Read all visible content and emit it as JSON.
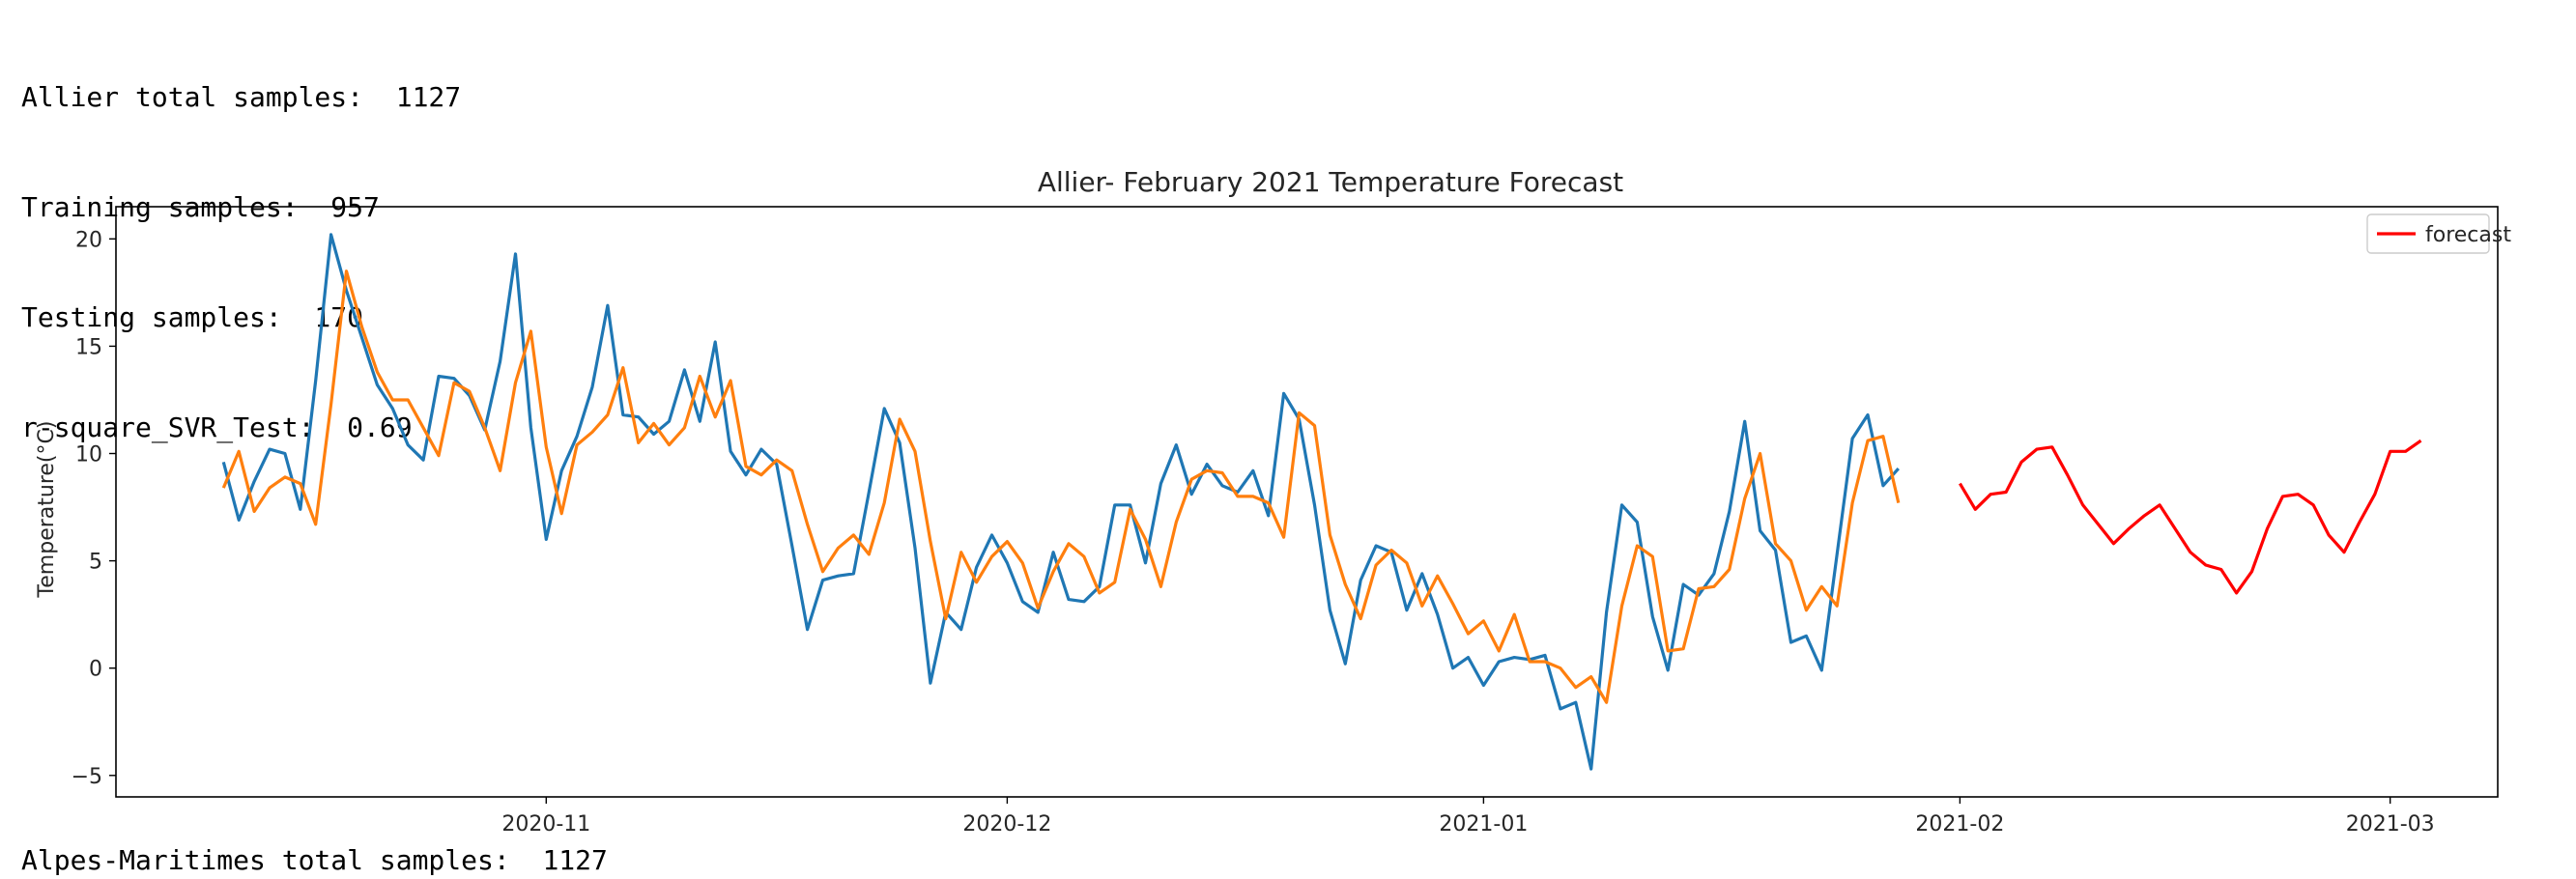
{
  "stats": {
    "line1": "Allier total samples:  1127",
    "line2": "Training samples:  957",
    "line3": "Testing samples:  170",
    "line4": "r-square_SVR_Test:  0.69",
    "next_output": "Alpes-Maritimes total samples:  1127"
  },
  "chart_data": {
    "type": "line",
    "title": "Allier- February 2021 Temperature Forecast",
    "xlabel": "",
    "ylabel": "Temperature(°C)",
    "x_range": [
      "2020-10-04",
      "2021-03-08"
    ],
    "ylim": [
      -6,
      21.5
    ],
    "yticks": [
      -5,
      0,
      5,
      10,
      15,
      20
    ],
    "xticks": [
      "2020-11-01",
      "2020-12-01",
      "2021-01-01",
      "2021-02-01",
      "2021-03-01"
    ],
    "xtick_labels": [
      "2020-11",
      "2020-12",
      "2021-01",
      "2021-02",
      "2021-03"
    ],
    "grid": false,
    "legend": {
      "placement": "top-right",
      "entries": [
        "forecast"
      ]
    },
    "series": [
      {
        "color": "#1f77b4",
        "start": "2020-10-11",
        "values": [
          9.6,
          6.9,
          8.7,
          10.2,
          10.0,
          7.4,
          13.4,
          20.2,
          17.6,
          15.4,
          13.2,
          12.1,
          10.4,
          9.7,
          13.6,
          13.5,
          12.7,
          11.1,
          14.3,
          19.3,
          11.2,
          6.0,
          9.2,
          10.8,
          13.1,
          16.9,
          11.8,
          11.7,
          10.9,
          11.5,
          13.9,
          11.5,
          15.2,
          10.1,
          9.0,
          10.2,
          9.5,
          5.7,
          1.8,
          4.1,
          4.3,
          4.4,
          8.2,
          12.1,
          10.5,
          5.6,
          -0.7,
          2.6,
          1.8,
          4.7,
          6.2,
          4.9,
          3.1,
          2.6,
          5.4,
          3.2,
          3.1,
          3.8,
          7.6,
          7.6,
          4.9,
          8.6,
          10.4,
          8.1,
          9.5,
          8.5,
          8.2,
          9.2,
          7.1,
          12.8,
          11.6,
          7.6,
          2.7,
          0.2,
          4.1,
          5.7,
          5.4,
          2.7,
          4.4,
          2.5,
          0.0,
          0.5,
          -0.8,
          0.3,
          0.5,
          0.4,
          0.6,
          -1.9,
          -1.6,
          -4.7,
          2.6,
          7.6,
          6.8,
          2.4,
          -0.1,
          3.9,
          3.4,
          4.4,
          7.3,
          11.5,
          6.4,
          5.5,
          1.2,
          1.5,
          -0.1,
          5.3,
          10.7,
          11.8,
          8.5,
          9.3
        ]
      },
      {
        "color": "#ff7f0e",
        "start": "2020-10-11",
        "values": [
          8.4,
          10.1,
          7.3,
          8.4,
          8.9,
          8.6,
          6.7,
          12.3,
          18.5,
          15.9,
          13.8,
          12.5,
          12.5,
          11.2,
          9.9,
          13.3,
          12.9,
          11.2,
          9.2,
          13.3,
          15.7,
          10.3,
          7.2,
          10.4,
          11.0,
          11.8,
          14.0,
          10.5,
          11.4,
          10.4,
          11.2,
          13.6,
          11.7,
          13.4,
          9.4,
          9.0,
          9.7,
          9.2,
          6.7,
          4.5,
          5.6,
          6.2,
          5.3,
          7.7,
          11.6,
          10.1,
          5.9,
          2.3,
          5.4,
          4.0,
          5.2,
          5.9,
          4.9,
          2.8,
          4.5,
          5.8,
          5.2,
          3.5,
          4.0,
          7.4,
          6.0,
          3.8,
          6.8,
          8.8,
          9.2,
          9.1,
          8.0,
          8.0,
          7.7,
          6.1,
          11.9,
          11.3,
          6.2,
          3.9,
          2.3,
          4.8,
          5.5,
          4.9,
          2.9,
          4.3,
          3.0,
          1.6,
          2.2,
          0.8,
          2.5,
          0.3,
          0.3,
          0.0,
          -0.9,
          -0.4,
          -1.6,
          2.9,
          5.7,
          5.2,
          0.8,
          0.9,
          3.7,
          3.8,
          4.6,
          7.9,
          10.0,
          5.8,
          5.0,
          2.7,
          3.8,
          2.9,
          7.7,
          10.6,
          10.8,
          7.7
        ]
      },
      {
        "name": "forecast",
        "color": "#ff0000",
        "start": "2021-02-01",
        "values": [
          8.6,
          7.4,
          8.1,
          8.2,
          9.6,
          10.2,
          10.3,
          9.0,
          7.6,
          6.7,
          5.8,
          6.5,
          7.1,
          7.6,
          6.5,
          5.4,
          4.8,
          4.6,
          3.5,
          4.5,
          6.5,
          8.0,
          8.1,
          7.6,
          6.2,
          5.4,
          6.8,
          8.1,
          10.1,
          10.1,
          10.6
        ]
      }
    ]
  }
}
